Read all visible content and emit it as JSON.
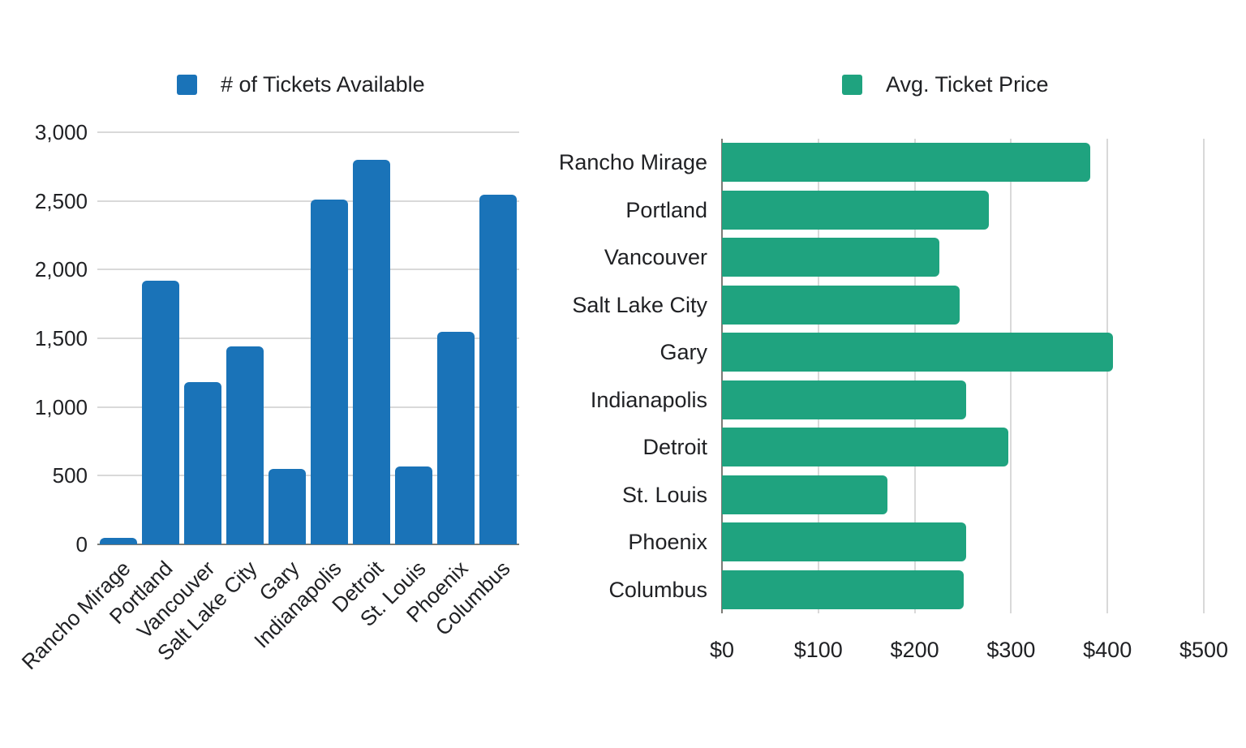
{
  "page": {
    "background": "#ffffff"
  },
  "colors": {
    "tickets_bar": "#1a73b8",
    "price_bar": "#1fa37f",
    "gridline": "#d9d9d9",
    "axis_baseline": "#7b7b76",
    "text": "#202124"
  },
  "chart_data": [
    {
      "type": "bar",
      "legend": "# of Tickets Available",
      "color": "#1a73b8",
      "legend_position": "top",
      "grid": true,
      "categories": [
        "Rancho Mirage",
        "Portland",
        "Vancouver",
        "Salt Lake City",
        "Gary",
        "Indianapolis",
        "Detroit",
        "St. Louis",
        "Phoenix",
        "Columbus"
      ],
      "values": [
        50,
        1920,
        1180,
        1440,
        550,
        2510,
        2800,
        565,
        1550,
        2545
      ],
      "ylim": [
        0,
        3000
      ],
      "y_tick_values": [
        0,
        500,
        1000,
        1500,
        2000,
        2500,
        3000
      ],
      "y_tick_labels": [
        "0",
        "500",
        "1,000",
        "1,500",
        "2,000",
        "2,500",
        "3,000"
      ],
      "x_tick_rotation_deg": 45
    },
    {
      "type": "bar-horizontal",
      "legend": "Avg. Ticket Price",
      "color": "#1fa37f",
      "legend_position": "top",
      "grid": true,
      "categories": [
        "Rancho Mirage",
        "Portland",
        "Vancouver",
        "Salt Lake City",
        "Gary",
        "Indianapolis",
        "Detroit",
        "St. Louis",
        "Phoenix",
        "Columbus"
      ],
      "values": [
        382,
        277,
        226,
        247,
        406,
        253,
        297,
        172,
        253,
        251
      ],
      "xlim": [
        0,
        500
      ],
      "x_tick_values": [
        0,
        100,
        200,
        300,
        400,
        500
      ],
      "x_tick_labels": [
        "$0",
        "$100",
        "$200",
        "$300",
        "$400",
        "$500"
      ]
    }
  ]
}
